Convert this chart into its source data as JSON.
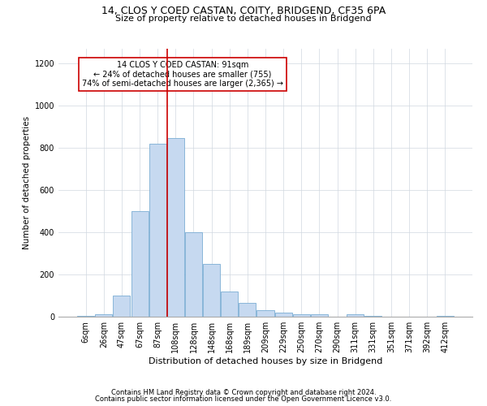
{
  "title": "14, CLOS Y COED CASTAN, COITY, BRIDGEND, CF35 6PA",
  "subtitle": "Size of property relative to detached houses in Bridgend",
  "xlabel": "Distribution of detached houses by size in Bridgend",
  "ylabel": "Number of detached properties",
  "footnote1": "Contains HM Land Registry data © Crown copyright and database right 2024.",
  "footnote2": "Contains public sector information licensed under the Open Government Licence v3.0.",
  "bar_labels": [
    "6sqm",
    "26sqm",
    "47sqm",
    "67sqm",
    "87sqm",
    "108sqm",
    "128sqm",
    "148sqm",
    "168sqm",
    "189sqm",
    "209sqm",
    "229sqm",
    "250sqm",
    "270sqm",
    "290sqm",
    "311sqm",
    "331sqm",
    "351sqm",
    "371sqm",
    "392sqm",
    "412sqm"
  ],
  "bar_values": [
    5,
    10,
    100,
    500,
    820,
    845,
    400,
    250,
    120,
    65,
    30,
    20,
    10,
    10,
    0,
    10,
    5,
    0,
    0,
    0,
    5
  ],
  "bar_color": "#c6d9f0",
  "bar_edge_color": "#7aadd4",
  "grid_color": "#d0d8e0",
  "background_color": "#ffffff",
  "annotation_text": "14 CLOS Y COED CASTAN: 91sqm\n← 24% of detached houses are smaller (755)\n74% of semi-detached houses are larger (2,365) →",
  "annotation_box_color": "#ffffff",
  "annotation_box_edge_color": "#cc0000",
  "vline_color": "#cc0000",
  "vline_x_index": 4.52,
  "ylim": [
    0,
    1270
  ],
  "yticks": [
    0,
    200,
    400,
    600,
    800,
    1000,
    1200
  ],
  "title_fontsize": 9,
  "subtitle_fontsize": 8,
  "xlabel_fontsize": 8,
  "ylabel_fontsize": 7.5,
  "tick_fontsize": 7,
  "annotation_fontsize": 7,
  "footnote_fontsize": 6
}
